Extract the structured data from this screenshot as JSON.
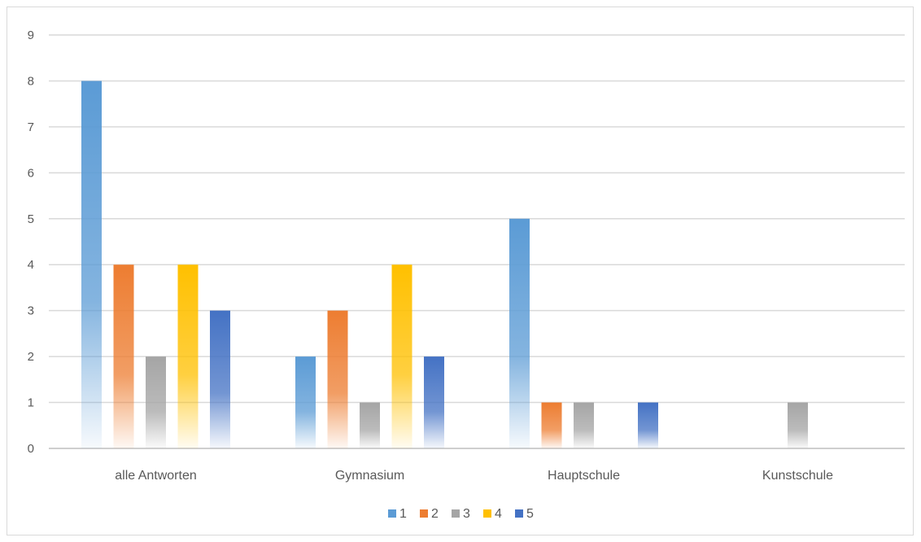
{
  "chart_data": {
    "type": "bar",
    "categories": [
      "alle Antworten",
      "Gymnasium",
      "Hauptschule",
      "Kunstschule"
    ],
    "series": [
      {
        "name": "1",
        "values": [
          8,
          2,
          5,
          0
        ]
      },
      {
        "name": "2",
        "values": [
          4,
          3,
          1,
          0
        ]
      },
      {
        "name": "3",
        "values": [
          2,
          1,
          1,
          1
        ]
      },
      {
        "name": "4",
        "values": [
          4,
          4,
          0,
          0
        ]
      },
      {
        "name": "5",
        "values": [
          3,
          2,
          1,
          0
        ]
      }
    ],
    "ylim": [
      0,
      9
    ],
    "yticks": [
      "0",
      "1",
      "2",
      "3",
      "4",
      "5",
      "6",
      "7",
      "8",
      "9"
    ],
    "grid": true,
    "legend_position": "bottom",
    "colors": [
      "#5b9bd5",
      "#ed7d31",
      "#a5a5a5",
      "#ffc000",
      "#4472c4"
    ]
  }
}
